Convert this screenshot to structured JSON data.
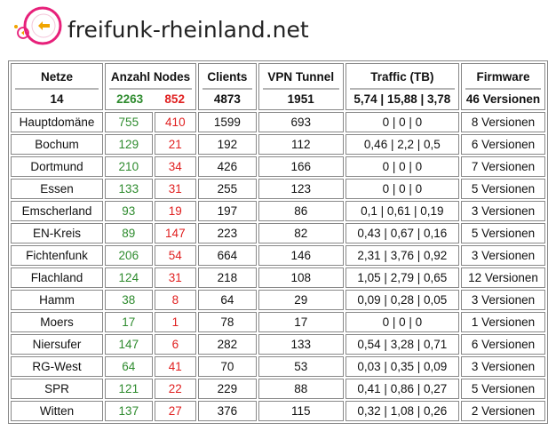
{
  "site": {
    "title": "freifunk-rheinland.net",
    "logo_color": "#e7207a"
  },
  "table": {
    "headers": {
      "netze": "Netze",
      "nodes": "Anzahl Nodes",
      "clients": "Clients",
      "vpn": "VPN Tunnel",
      "traffic": "Traffic (TB)",
      "firmware": "Firmware"
    },
    "totals": {
      "netze": "14",
      "nodes_online": "2263",
      "nodes_offline": "852",
      "clients": "4873",
      "vpn": "1951",
      "traffic": "5,74 | 15,88 | 3,78",
      "firmware": "46 Versionen"
    },
    "rows": [
      {
        "name": "Hauptdomäne",
        "online": "755",
        "offline": "410",
        "clients": "1599",
        "vpn": "693",
        "traffic": "0 | 0 | 0",
        "firmware": "8 Versionen"
      },
      {
        "name": "Bochum",
        "online": "129",
        "offline": "21",
        "clients": "192",
        "vpn": "112",
        "traffic": "0,46 | 2,2 | 0,5",
        "firmware": "6 Versionen"
      },
      {
        "name": "Dortmund",
        "online": "210",
        "offline": "34",
        "clients": "426",
        "vpn": "166",
        "traffic": "0 | 0 | 0",
        "firmware": "7 Versionen"
      },
      {
        "name": "Essen",
        "online": "133",
        "offline": "31",
        "clients": "255",
        "vpn": "123",
        "traffic": "0 | 0 | 0",
        "firmware": "5 Versionen"
      },
      {
        "name": "Emscherland",
        "online": "93",
        "offline": "19",
        "clients": "197",
        "vpn": "86",
        "traffic": "0,1 | 0,61 | 0,19",
        "firmware": "3 Versionen"
      },
      {
        "name": "EN-Kreis",
        "online": "89",
        "offline": "147",
        "clients": "223",
        "vpn": "82",
        "traffic": "0,43 | 0,67 | 0,16",
        "firmware": "5 Versionen"
      },
      {
        "name": "Fichtenfunk",
        "online": "206",
        "offline": "54",
        "clients": "664",
        "vpn": "146",
        "traffic": "2,31 | 3,76 | 0,92",
        "firmware": "3 Versionen"
      },
      {
        "name": "Flachland",
        "online": "124",
        "offline": "31",
        "clients": "218",
        "vpn": "108",
        "traffic": "1,05 | 2,79 | 0,65",
        "firmware": "12 Versionen"
      },
      {
        "name": "Hamm",
        "online": "38",
        "offline": "8",
        "clients": "64",
        "vpn": "29",
        "traffic": "0,09 | 0,28 | 0,05",
        "firmware": "3 Versionen"
      },
      {
        "name": "Moers",
        "online": "17",
        "offline": "1",
        "clients": "78",
        "vpn": "17",
        "traffic": "0 | 0 | 0",
        "firmware": "1 Versionen"
      },
      {
        "name": "Niersufer",
        "online": "147",
        "offline": "6",
        "clients": "282",
        "vpn": "133",
        "traffic": "0,54 | 3,28 | 0,71",
        "firmware": "6 Versionen"
      },
      {
        "name": "RG-West",
        "online": "64",
        "offline": "41",
        "clients": "70",
        "vpn": "53",
        "traffic": "0,03 | 0,35 | 0,09",
        "firmware": "3 Versionen"
      },
      {
        "name": "SPR",
        "online": "121",
        "offline": "22",
        "clients": "229",
        "vpn": "88",
        "traffic": "0,41 | 0,86 | 0,27",
        "firmware": "5 Versionen"
      },
      {
        "name": "Witten",
        "online": "137",
        "offline": "27",
        "clients": "376",
        "vpn": "115",
        "traffic": "0,32 | 1,08 | 0,26",
        "firmware": "2 Versionen"
      }
    ]
  },
  "colors": {
    "online": "#2e8b2e",
    "offline": "#e02020",
    "border": "#888888"
  }
}
